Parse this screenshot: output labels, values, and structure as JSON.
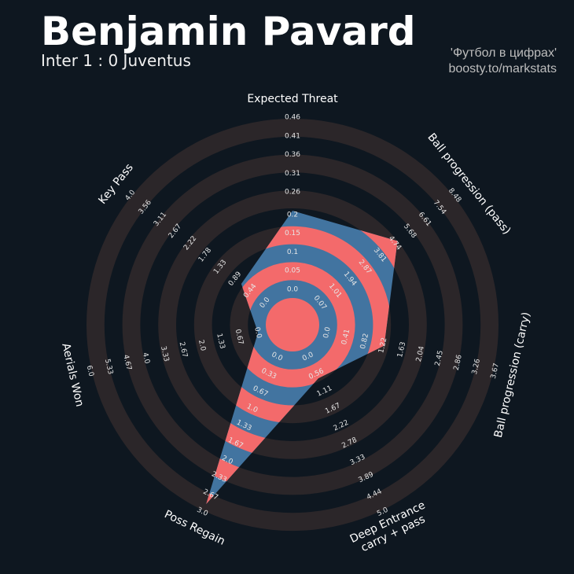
{
  "chart_data": {
    "type": "radar",
    "title": "Benjamin Pavard",
    "subtitle": "Inter 1 : 0 Juventus",
    "credits": [
      "'Футбол в цифрах'",
      "boosty.to/markstats"
    ],
    "background": "#0e1720",
    "ring_color": "#2b2629",
    "axes": [
      {
        "label": [
          "Expected Threat"
        ],
        "lim": [
          0,
          0.46
        ],
        "ticks": [
          {
            "value": 0,
            "label": "0.0"
          },
          0.05,
          0.1,
          0.15,
          0.2,
          0.26,
          0.31,
          0.36,
          0.41,
          0.46
        ]
      },
      {
        "label": [
          "Ball progression (pass)"
        ],
        "lim": [
          0.07,
          8.48
        ],
        "ticks": [
          0.07,
          1.01,
          1.94,
          2.87,
          3.81,
          4.74,
          5.68,
          6.61,
          7.54,
          8.48
        ]
      },
      {
        "label": [
          "Ball progression (carry)"
        ],
        "lim": [
          0,
          3.67
        ],
        "ticks": [
          {
            "value": 0,
            "label": "0.0"
          },
          0.41,
          0.82,
          1.22,
          1.63,
          2.04,
          2.45,
          2.86,
          3.26,
          3.67
        ]
      },
      {
        "label": [
          "Deep Entrance",
          "carry + pass"
        ],
        "lim": [
          0,
          5
        ],
        "ticks": [
          {
            "value": 0,
            "label": "0.0"
          },
          0.56,
          1.11,
          1.67,
          2.22,
          2.78,
          3.33,
          3.89,
          4.44,
          {
            "value": 5,
            "label": "5.0"
          }
        ]
      },
      {
        "label": [
          "Poss Regain"
        ],
        "lim": [
          0,
          3
        ],
        "ticks": [
          {
            "value": 0,
            "label": "0.0"
          },
          0.33,
          0.67,
          {
            "value": 1,
            "label": "1.0"
          },
          1.33,
          1.67,
          {
            "value": 2,
            "label": "2.0"
          },
          2.33,
          2.67,
          {
            "value": 3,
            "label": "3.0"
          }
        ]
      },
      {
        "label": [
          "Aerials Won"
        ],
        "lim": [
          0,
          6
        ],
        "ticks": [
          {
            "value": 0,
            "label": "0.0"
          },
          0.67,
          1.33,
          {
            "value": 2,
            "label": "2.0"
          },
          2.67,
          3.33,
          {
            "value": 4,
            "label": "4.0"
          },
          4.67,
          5.33,
          {
            "value": 6,
            "label": "6.0"
          }
        ]
      },
      {
        "label": [
          "Key Pass"
        ],
        "lim": [
          0,
          4
        ],
        "ticks": [
          {
            "value": 0,
            "label": "0.0"
          },
          0.44,
          0.89,
          1.33,
          1.78,
          2.22,
          2.67,
          3.11,
          3.56,
          {
            "value": 4,
            "label": "4.0"
          }
        ]
      }
    ],
    "series": [
      {
        "color": "#4274a0",
        "stripe_color": "#f36a6b",
        "values": [
          0.21,
          4.9,
          1.25,
          0.7,
          2.85,
          0,
          0.7
        ]
      }
    ]
  }
}
